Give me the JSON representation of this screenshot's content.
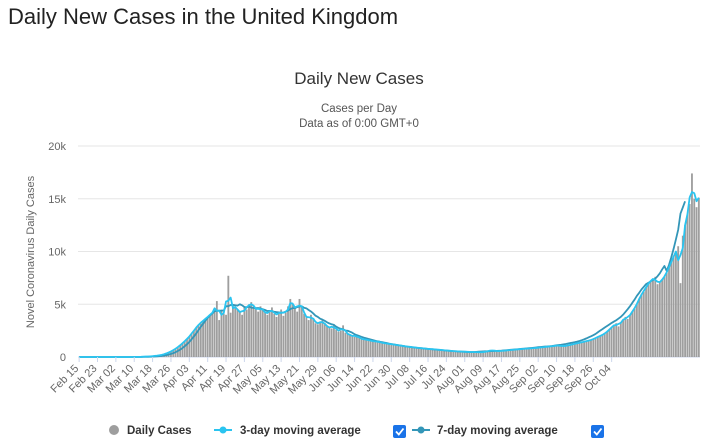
{
  "page": {
    "title": "Daily New Cases in the United Kingdom"
  },
  "chart_data": {
    "type": "bar",
    "title": "Daily New Cases",
    "subtitle_line1": "Cases per Day",
    "subtitle_line2": "Data as of 0:00 GMT+0",
    "ylabel": "Novel Coronavirus Daily Cases",
    "xlabel": "",
    "ylim": [
      0,
      20000
    ],
    "yticks": [
      0,
      5000,
      10000,
      15000,
      20000
    ],
    "ytick_labels": [
      "0",
      "5k",
      "10k",
      "15k",
      "20k"
    ],
    "x_start": "Feb 15",
    "x_end": "Oct 11",
    "xtick_labels": [
      "Feb 15",
      "Feb 23",
      "Mar 02",
      "Mar 10",
      "Mar 18",
      "Mar 26",
      "Apr 03",
      "Apr 11",
      "Apr 19",
      "Apr 27",
      "May 05",
      "May 13",
      "May 21",
      "May 29",
      "Jun 06",
      "Jun 14",
      "Jun 22",
      "Jun 30",
      "Jul 08",
      "Jul 16",
      "Jul 24",
      "Aug 01",
      "Aug 09",
      "Aug 17",
      "Aug 25",
      "Sep 02",
      "Sep 10",
      "Sep 18",
      "Sep 26",
      "Oct 04"
    ],
    "grid": true,
    "legend_position": "bottom",
    "colors": {
      "bars": "#9e9e9e",
      "ma3": "#2ac4f0",
      "ma7": "#3396b8",
      "checkbox": "#1a73e8"
    },
    "series": [
      {
        "name": "Daily Cases",
        "type": "bar",
        "values": [
          0,
          0,
          0,
          0,
          0,
          0,
          0,
          0,
          0,
          0,
          0,
          0,
          0,
          0,
          0,
          0,
          0,
          0,
          0,
          0,
          0,
          0,
          0,
          0,
          5,
          10,
          15,
          20,
          30,
          40,
          50,
          60,
          80,
          100,
          130,
          160,
          200,
          260,
          340,
          420,
          520,
          640,
          780,
          940,
          1100,
          1300,
          1500,
          1700,
          1950,
          2200,
          2500,
          2800,
          3050,
          3250,
          3450,
          3600,
          3800,
          4000,
          4200,
          4350,
          5300,
          3500,
          4400,
          4100,
          4000,
          7700,
          4200,
          5000,
          4700,
          4500,
          4300,
          4000,
          4700,
          4500,
          5000,
          5200,
          4800,
          4600,
          4300,
          4800,
          4500,
          4200,
          4000,
          4300,
          4700,
          4100,
          3800,
          4200,
          4500,
          3900,
          4200,
          4800,
          5500,
          5000,
          4600,
          4300,
          5500,
          4800,
          4100,
          3800,
          3500,
          4000,
          3700,
          3200,
          3100,
          3300,
          3500,
          3100,
          2900,
          2800,
          2700,
          3100,
          2600,
          2400,
          2500,
          3000,
          2300,
          2200,
          2100,
          2000,
          1900,
          2100,
          1800,
          1700,
          1700,
          1650,
          1600,
          1550,
          1500,
          1450,
          1500,
          1400,
          1350,
          1300,
          1300,
          1250,
          1200,
          1200,
          1150,
          1100,
          1100,
          1050,
          1000,
          1000,
          950,
          950,
          900,
          900,
          850,
          850,
          800,
          800,
          780,
          760,
          740,
          720,
          700,
          680,
          660,
          640,
          620,
          600,
          580,
          560,
          540,
          540,
          520,
          520,
          500,
          500,
          480,
          480,
          470,
          460,
          460,
          450,
          450,
          500,
          550,
          600,
          650,
          600,
          550,
          560,
          580,
          600,
          620,
          640,
          660,
          680,
          700,
          720,
          740,
          760,
          780,
          800,
          800,
          820,
          840,
          860,
          880,
          900,
          920,
          950,
          980,
          1000,
          1020,
          1050,
          1080,
          1100,
          1050,
          1000,
          1050,
          1100,
          1150,
          1200,
          1250,
          1300,
          1350,
          1400,
          1450,
          1500,
          1550,
          1600,
          1700,
          1800,
          1900,
          2000,
          2100,
          2200,
          2400,
          2600,
          2800,
          3000,
          3200,
          2900,
          3300,
          3500,
          3800,
          3600,
          4000,
          4300,
          4600,
          5000,
          5500,
          6000,
          6200,
          6600,
          7000,
          7200,
          7400,
          7600,
          6900,
          7100,
          7300,
          7600,
          8000,
          8500,
          9000,
          9500,
          10000,
          10500,
          7000,
          11500,
          12500,
          13500,
          14500,
          17400,
          15000,
          14200,
          15100
        ]
      },
      {
        "name": "3-day moving average",
        "type": "line",
        "values": [
          0,
          0,
          0,
          0,
          0,
          0,
          0,
          0,
          0,
          0,
          0,
          0,
          0,
          0,
          0,
          0,
          0,
          0,
          0,
          0,
          0,
          0,
          0,
          0,
          3,
          10,
          15,
          20,
          30,
          40,
          50,
          63,
          80,
          103,
          130,
          163,
          207,
          267,
          340,
          427,
          527,
          647,
          787,
          940,
          1113,
          1300,
          1500,
          1717,
          1950,
          2217,
          2500,
          2783,
          3033,
          3250,
          3433,
          3617,
          3800,
          4000,
          4183,
          4617,
          4383,
          4400,
          4000,
          4167,
          5267,
          5333,
          5633,
          4633,
          4733,
          4500,
          4267,
          4333,
          4400,
          4733,
          4900,
          5000,
          4867,
          4567,
          4567,
          4533,
          4500,
          4233,
          4167,
          4333,
          4367,
          4200,
          4033,
          4167,
          4200,
          4200,
          4300,
          4500,
          5100,
          5067,
          4700,
          4800,
          4867,
          4800,
          4233,
          3800,
          3767,
          3733,
          3633,
          3333,
          3200,
          3300,
          3300,
          3167,
          2933,
          2800,
          2867,
          2800,
          2700,
          2500,
          2633,
          2600,
          2500,
          2200,
          2100,
          2000,
          2000,
          1933,
          1867,
          1733,
          1683,
          1650,
          1600,
          1550,
          1500,
          1483,
          1450,
          1417,
          1350,
          1317,
          1283,
          1250,
          1217,
          1183,
          1150,
          1117,
          1083,
          1050,
          1017,
          983,
          967,
          933,
          917,
          883,
          867,
          833,
          817,
          793,
          773,
          753,
          740,
          720,
          700,
          680,
          660,
          640,
          620,
          600,
          580,
          560,
          547,
          533,
          520,
          513,
          503,
          493,
          480,
          477,
          470,
          463,
          457,
          453,
          467,
          500,
          550,
          600,
          617,
          600,
          570,
          563,
          580,
          600,
          620,
          640,
          660,
          680,
          700,
          720,
          740,
          760,
          780,
          793,
          807,
          820,
          840,
          860,
          880,
          900,
          923,
          950,
          977,
          1000,
          1023,
          1050,
          1077,
          1077,
          1050,
          1050,
          1050,
          1100,
          1150,
          1200,
          1250,
          1300,
          1350,
          1400,
          1450,
          1500,
          1550,
          1617,
          1700,
          1800,
          1900,
          2000,
          2100,
          2233,
          2400,
          2600,
          2800,
          3000,
          3033,
          3133,
          3233,
          3533,
          3633,
          3800,
          3967,
          4300,
          4633,
          5033,
          5500,
          5900,
          6267,
          6600,
          6933,
          7200,
          7400,
          7300,
          7133,
          7100,
          7333,
          7633,
          8033,
          8500,
          9000,
          9500,
          10000,
          9167,
          9667,
          10333,
          12500,
          13500,
          15133,
          15633,
          15533,
          14767,
          15100
        ]
      },
      {
        "name": "7-day moving average",
        "type": "line",
        "values": [
          0,
          0,
          0,
          0,
          0,
          0,
          0,
          0,
          0,
          0,
          0,
          0,
          0,
          0,
          0,
          0,
          0,
          0,
          0,
          0,
          0,
          0,
          0,
          0,
          1,
          2,
          4,
          7,
          10,
          14,
          20,
          28,
          38,
          51,
          66,
          85,
          109,
          140,
          180,
          230,
          291,
          366,
          459,
          569,
          697,
          846,
          1017,
          1211,
          1431,
          1674,
          1943,
          2236,
          2546,
          2857,
          3157,
          3439,
          3700,
          3937,
          4129,
          4343,
          4371,
          4386,
          4400,
          4407,
          4814,
          4814,
          4929,
          4943,
          4900,
          4871,
          5000,
          4900,
          4743,
          4700,
          4786,
          4671,
          4657,
          4629,
          4643,
          4600,
          4529,
          4457,
          4357,
          4371,
          4343,
          4286,
          4257,
          4229,
          4186,
          4214,
          4286,
          4414,
          4543,
          4629,
          4629,
          4729,
          4786,
          4814,
          4671,
          4614,
          4457,
          4314,
          4129,
          3914,
          3800,
          3629,
          3543,
          3429,
          3293,
          3186,
          3100,
          3043,
          2871,
          2757,
          2671,
          2629,
          2514,
          2486,
          2400,
          2300,
          2157,
          2071,
          1993,
          1914,
          1843,
          1779,
          1714,
          1656,
          1600,
          1543,
          1486,
          1450,
          1407,
          1364,
          1321,
          1271,
          1229,
          1193,
          1157,
          1121,
          1086,
          1050,
          1014,
          986,
          957,
          929,
          900,
          879,
          857,
          834,
          811,
          790,
          769,
          749,
          729,
          709,
          689,
          669,
          649,
          629,
          609,
          591,
          573,
          557,
          543,
          530,
          517,
          503,
          491,
          481,
          474,
          469,
          476,
          487,
          501,
          515,
          527,
          537,
          541,
          557,
          561,
          573,
          583,
          591,
          603,
          623,
          643,
          660,
          680,
          697,
          717,
          737,
          754,
          774,
          794,
          814,
          834,
          857,
          879,
          904,
          929,
          950,
          971,
          990,
          1003,
          1023,
          1043,
          1071,
          1107,
          1136,
          1164,
          1200,
          1236,
          1279,
          1321,
          1364,
          1407,
          1457,
          1521,
          1593,
          1671,
          1764,
          1864,
          1964,
          2071,
          2186,
          2343,
          2500,
          2643,
          2800,
          2943,
          3086,
          3229,
          3357,
          3486,
          3643,
          3800,
          4014,
          4271,
          4529,
          4814,
          5136,
          5443,
          5800,
          6086,
          6400,
          6657,
          6907,
          7029,
          7171,
          7300,
          7433,
          7657,
          7929,
          8300,
          8629,
          8157,
          8729,
          9457,
          10257,
          11143,
          12071,
          13600,
          14171,
          14757
        ]
      }
    ]
  },
  "legend": {
    "items": [
      {
        "label": "Daily Cases"
      },
      {
        "label": "3-day moving average"
      },
      {
        "label": "7-day moving average"
      }
    ]
  }
}
